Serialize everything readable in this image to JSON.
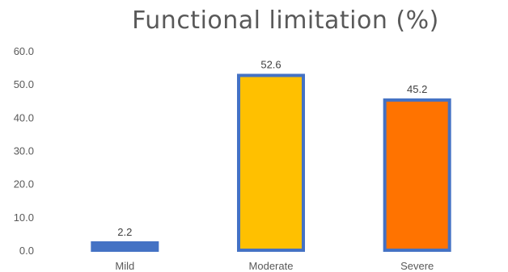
{
  "chart_data": {
    "type": "bar",
    "title": "Functional limitation (%)",
    "categories": [
      "Mild",
      "Moderate",
      "Severe"
    ],
    "values": [
      2.2,
      52.6,
      45.2
    ],
    "data_labels": [
      "2.2",
      "52.6",
      "45.2"
    ],
    "y_ticks": [
      "0.0",
      "10.0",
      "20.0",
      "30.0",
      "40.0",
      "50.0",
      "60.0"
    ],
    "ylim": [
      0,
      60
    ],
    "xlabel": "",
    "ylabel": "",
    "grid": false,
    "legend": "none",
    "colors": {
      "bar_fills": [
        "#4472C4",
        "#FFC000",
        "#FF7300"
      ],
      "bar_border": "#4472C4",
      "tick_text": "#595959",
      "label_text": "#404040"
    }
  }
}
